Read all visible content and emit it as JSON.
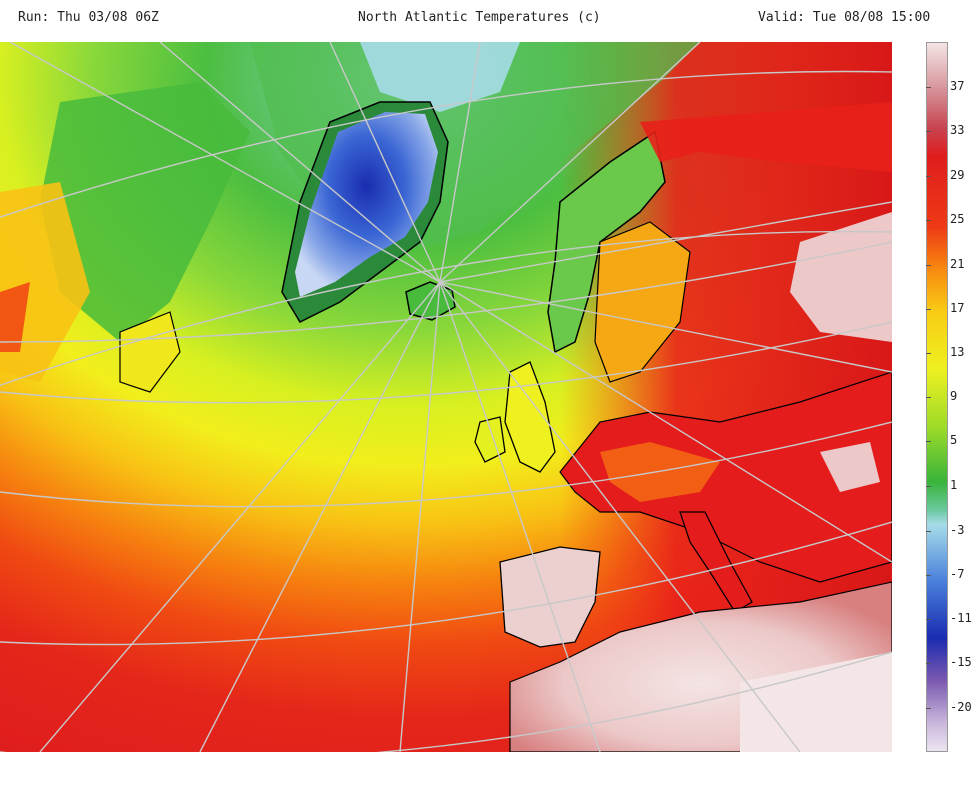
{
  "header": {
    "run": "Run: Thu 03/08 06Z",
    "title": "North Atlantic Temperatures (c)",
    "valid": "Valid: Tue 08/08 15:00"
  },
  "legend": {
    "ticks": [
      "37",
      "33",
      "29",
      "25",
      "21",
      "17",
      "13",
      "9",
      "5",
      "1",
      "-3",
      "-7",
      "-11",
      "-15",
      "-20"
    ],
    "colors": {
      "very_hot": "#f0d8d8",
      "hot_pink": "#d06a70",
      "red": "#e01d1d",
      "orange_red": "#f04a12",
      "orange": "#f89a10",
      "yellow": "#fbe818",
      "yellow_green": "#d6f020",
      "green": "#38b43a",
      "teal": "#80d4b4",
      "light_blue": "#a6dce8",
      "blue": "#3a66d4",
      "dark_blue": "#1a2cb0",
      "purple": "#7a58b0",
      "lavender": "#cbb6dc"
    }
  },
  "map": {
    "description_icon": "temperature-field-map"
  }
}
